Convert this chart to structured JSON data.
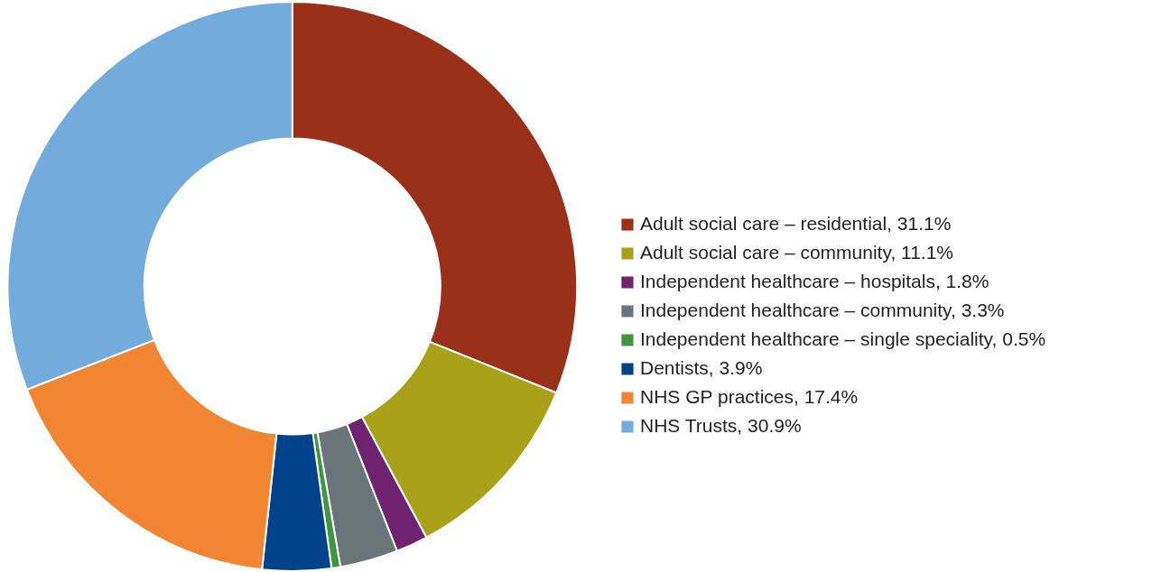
{
  "chart_data": {
    "type": "donut",
    "categories": [
      "Adult social care – residential",
      "Adult social care – community",
      "Independent healthcare – hospitals",
      "Independent healthcare – community",
      "Independent healthcare – single speciality",
      "Dentists",
      "NHS GP practices",
      "NHS Trusts"
    ],
    "values": [
      31.1,
      11.1,
      1.8,
      3.3,
      0.5,
      3.9,
      17.4,
      30.9
    ],
    "value_labels": [
      "31.1%",
      "11.1%",
      "1.8%",
      "3.3%",
      "0.5%",
      "3.9%",
      "17.4%",
      "30.9%"
    ],
    "colors": [
      "#9a3019",
      "#a9a219",
      "#6e2270",
      "#6a757a",
      "#3f9540",
      "#00438a",
      "#f28531",
      "#73acdc"
    ],
    "legend": "right"
  }
}
